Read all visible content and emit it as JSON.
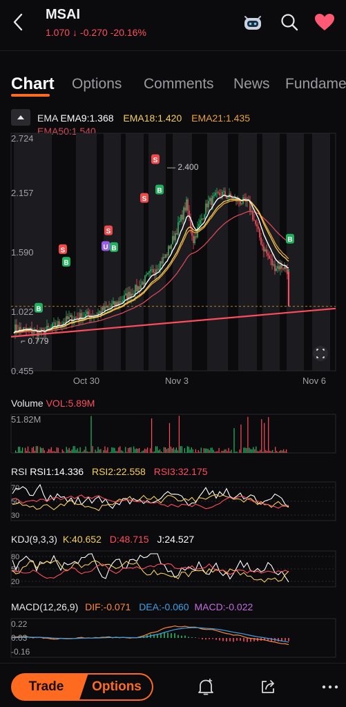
{
  "header": {
    "ticker": "MSAI",
    "price": "1.070",
    "arrow": "↓",
    "change": "-0.270",
    "change_pct": "-20.16%",
    "icons": [
      "back-chevron-icon",
      "robot-assistant-icon",
      "search-icon",
      "heart-icon"
    ]
  },
  "tabs": [
    "Chart",
    "Options",
    "Comments",
    "News",
    "Fundamentals"
  ],
  "tabs_visible": [
    "Chart",
    "Options",
    "Comments",
    "News",
    "Fundame"
  ],
  "main_chart": {
    "ema_title": "EMA",
    "ema9": "EMA9:1.368",
    "ema18": "EMA18:1.420",
    "ema21": "EMA21:1.435",
    "ema50": "EMA50:1.540",
    "y_ticks": [
      "2.724",
      "2.157",
      "1.590",
      "1.022",
      "0.455"
    ],
    "x_ticks": [
      "Oct 30",
      "Nov 3",
      "Nov 6"
    ],
    "high_label": "2.400",
    "low_label": "0.779",
    "markers_buy": "B",
    "markers_sell": "S",
    "marker_other": "U"
  },
  "volume": {
    "title": "Volume",
    "vol": "VOL:5.89M",
    "max": "51.82M"
  },
  "rsi": {
    "title": "RSI",
    "rsi1": "RSI1:14.336",
    "rsi2": "RSI2:22.558",
    "rsi3": "RSI3:32.175",
    "ticks": [
      "70",
      "50",
      "30"
    ]
  },
  "kdj": {
    "title": "KDJ(9,3,3)",
    "k": "K:40.652",
    "d": "D:48.715",
    "j": "J:24.527",
    "ticks": [
      "80",
      "50",
      "20"
    ]
  },
  "macd": {
    "title": "MACD(12,26,9)",
    "dif": "DIF:-0.071",
    "dea": "DEA:-0.060",
    "macd": "MACD:-0.022",
    "ticks": [
      "0.22",
      "0.03",
      "-0.16"
    ]
  },
  "bottom": {
    "trade": "Trade",
    "options": "Options",
    "icons": [
      "alert-bell-icon",
      "share-icon",
      "more-icon"
    ]
  },
  "colors": {
    "accent": "#ff6a21",
    "down": "#ff4d5e",
    "up": "#1fbf6a",
    "ema9": "#ffffff",
    "ema18": "#f5d05a",
    "ema21": "#e9a23b",
    "ema50": "#d9485a",
    "dea": "#3ea0e6",
    "macd": "#c46be0"
  }
}
